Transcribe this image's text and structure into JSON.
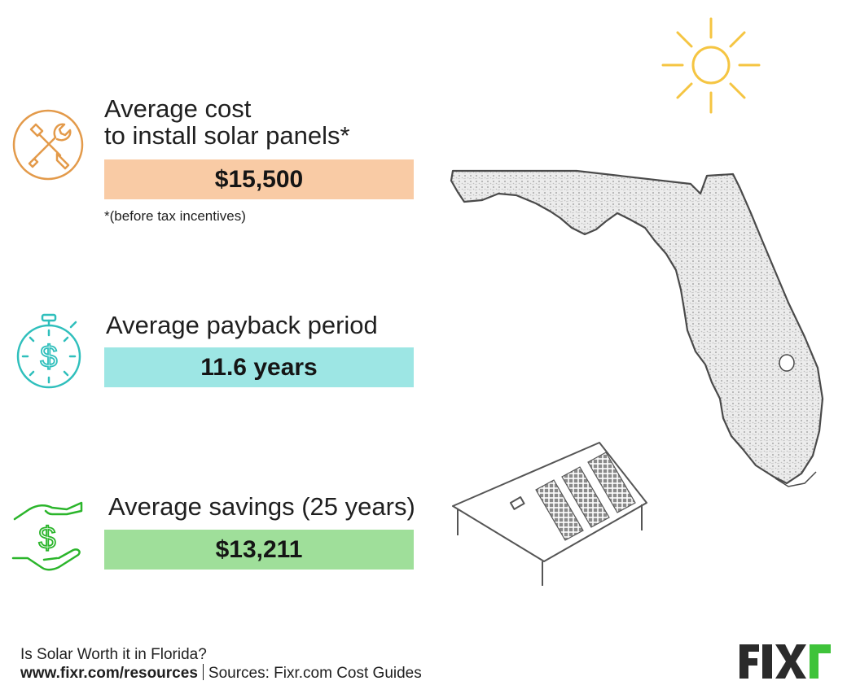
{
  "stats": [
    {
      "label_line1": "Average cost",
      "label_line2": "to install solar panels*",
      "value": "$15,500",
      "icon": "wrench-screwdriver-icon",
      "color": "#f9cba5",
      "icon_color": "#e39a4a",
      "note": "*(before tax incentives)"
    },
    {
      "label": "Average payback period",
      "value": "11.6 years",
      "icon": "stopwatch-dollar-icon",
      "color": "#9de6e4",
      "icon_color": "#2fbfbc"
    },
    {
      "label": "Average savings (25 years)",
      "value": "$13,211",
      "icon": "hands-dollar-icon",
      "color": "#9fdf9a",
      "icon_color": "#2bb52b"
    }
  ],
  "illustrations": {
    "sun": "sun-icon",
    "map": "florida-map",
    "house": "solar-roof-house",
    "sun_color": "#f5c542"
  },
  "footer": {
    "title": "Is Solar Worth it in Florida?",
    "url": "www.fixr.com/resources",
    "sources": "Sources: Fixr.com Cost Guides"
  },
  "logo": {
    "text": "FIXr",
    "dark": "#2b2b2b",
    "accent": "#3fc33a"
  }
}
